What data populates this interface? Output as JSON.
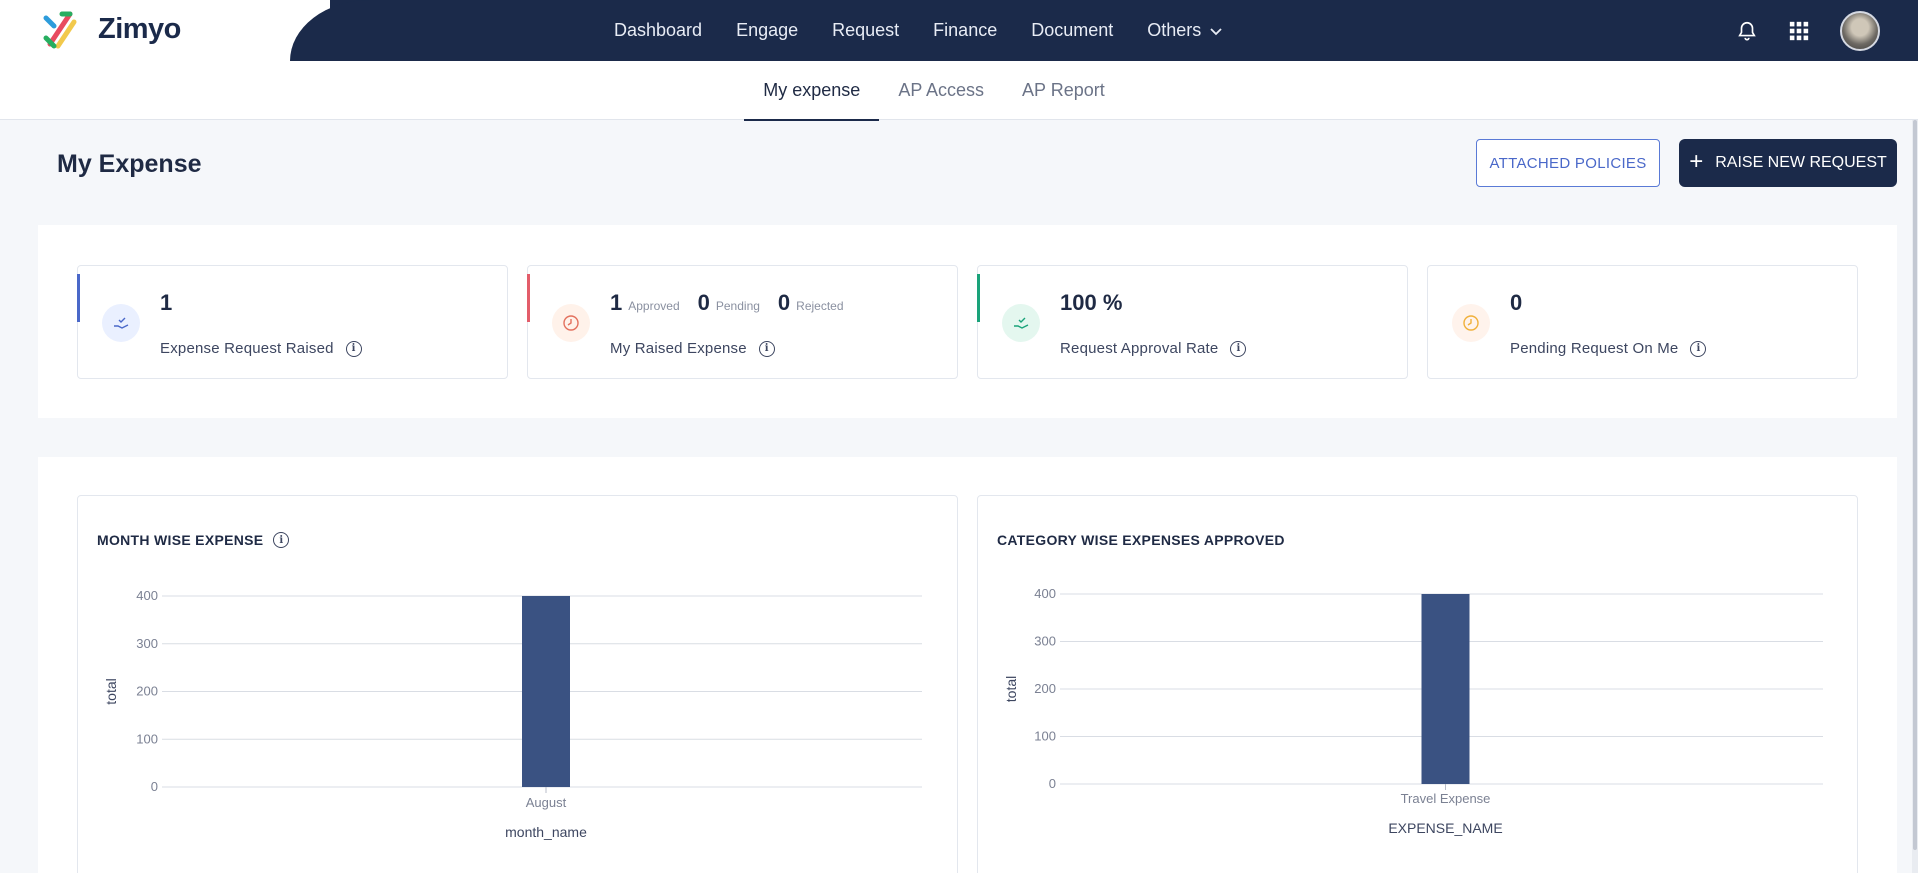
{
  "brand": {
    "name": "Zimyo"
  },
  "nav": {
    "items": [
      "Dashboard",
      "Engage",
      "Request",
      "Finance",
      "Document"
    ],
    "others_label": "Others"
  },
  "subtabs": [
    "My expense",
    "AP Access",
    "AP Report"
  ],
  "page": {
    "title": "My Expense",
    "attached_policies": "ATTACHED POLICIES",
    "raise_request": "RAISE NEW REQUEST"
  },
  "colors": {
    "navy": "#1b2a4a",
    "bar": "#3a5282",
    "accent_blue": "#4a68c9",
    "accent_red": "#e35d6a",
    "accent_green": "#1aa37a"
  },
  "stats": {
    "raised": {
      "value": "1",
      "label": "Expense Request Raised",
      "icon": "hand-check-icon"
    },
    "my_raised": {
      "approved_value": "1",
      "approved_label": "Approved",
      "pending_value": "0",
      "pending_label": "Pending",
      "rejected_value": "0",
      "rejected_label": "Rejected",
      "label": "My Raised Expense",
      "icon": "clock-icon"
    },
    "approval_rate": {
      "value": "100 %",
      "label": "Request Approval Rate",
      "icon": "hand-check-icon"
    },
    "pending_on_me": {
      "value": "0",
      "label": "Pending Request On Me",
      "icon": "clock-icon"
    }
  },
  "chart_data": [
    {
      "type": "bar",
      "title": "MONTH WISE EXPENSE",
      "categories": [
        "August"
      ],
      "values": [
        400
      ],
      "xlabel": "month_name",
      "ylabel": "total",
      "ylim": [
        0,
        400
      ],
      "yticks": [
        0,
        100,
        200,
        300,
        400
      ],
      "grid": true
    },
    {
      "type": "bar",
      "title": "CATEGORY WISE EXPENSES APPROVED",
      "categories": [
        "Travel Expense"
      ],
      "values": [
        400
      ],
      "xlabel": "EXPENSE_NAME",
      "ylabel": "total",
      "ylim": [
        0,
        400
      ],
      "yticks": [
        0,
        100,
        200,
        300,
        400
      ],
      "grid": true
    }
  ]
}
